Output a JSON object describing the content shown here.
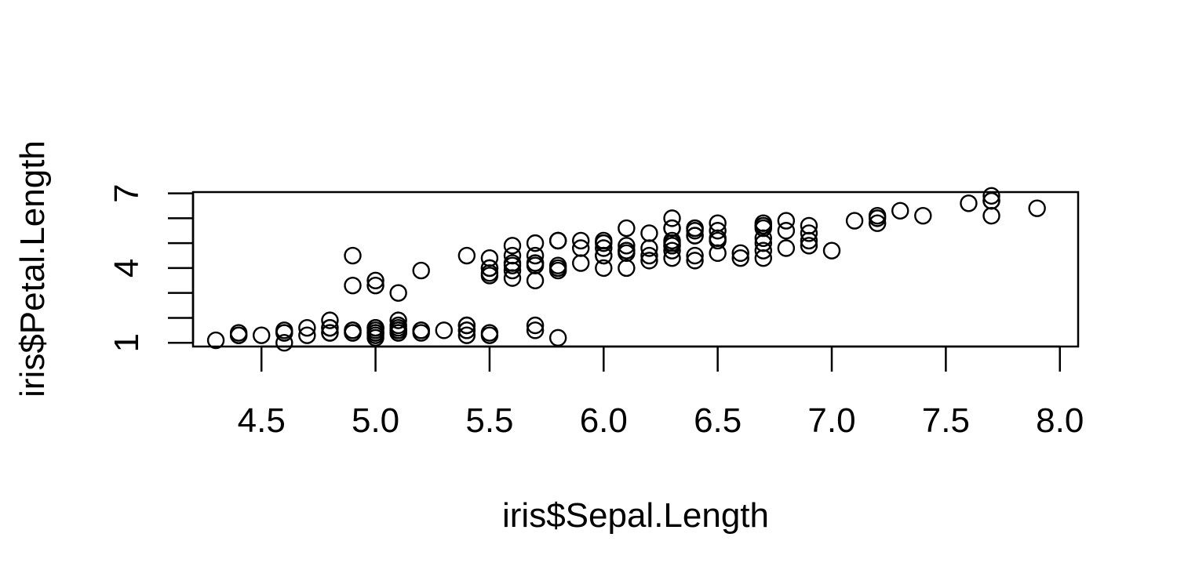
{
  "chart_data": {
    "type": "scatter",
    "title": "",
    "xlabel": "iris$Sepal.Length",
    "ylabel": "iris$Petal.Length",
    "xlim": [
      4.2,
      8.08
    ],
    "ylim": [
      0.85,
      7.05
    ],
    "x_ticks": [
      4.5,
      5.0,
      5.5,
      6.0,
      6.5,
      7.0,
      7.5,
      8.0
    ],
    "x_tick_labels": [
      "4.5",
      "5.0",
      "5.5",
      "6.0",
      "6.5",
      "7.0",
      "7.5",
      "8.0"
    ],
    "y_ticks": [
      1,
      2,
      3,
      4,
      5,
      6,
      7
    ],
    "y_tick_labels": [
      "1",
      "",
      "",
      "4",
      "",
      "",
      "7"
    ],
    "grid": false,
    "marker": "open-circle",
    "x": [
      5.1,
      4.9,
      4.7,
      4.6,
      5.0,
      5.4,
      4.6,
      5.0,
      4.4,
      4.9,
      5.4,
      4.8,
      4.8,
      4.3,
      5.8,
      5.7,
      5.4,
      5.1,
      5.7,
      5.1,
      5.4,
      5.1,
      4.6,
      5.1,
      4.8,
      5.0,
      5.0,
      5.2,
      5.2,
      4.7,
      4.8,
      5.4,
      5.2,
      5.5,
      4.9,
      5.0,
      5.5,
      4.9,
      4.4,
      5.1,
      5.0,
      4.5,
      4.4,
      5.0,
      5.1,
      4.8,
      5.1,
      4.6,
      5.3,
      5.0,
      7.0,
      6.4,
      6.9,
      5.5,
      6.5,
      5.7,
      6.3,
      4.9,
      6.6,
      5.2,
      5.0,
      5.9,
      6.0,
      6.1,
      5.6,
      6.7,
      5.6,
      5.8,
      6.2,
      5.6,
      5.9,
      6.1,
      6.3,
      6.1,
      6.4,
      6.6,
      6.8,
      6.7,
      6.0,
      5.7,
      5.5,
      5.5,
      5.8,
      6.0,
      5.4,
      6.0,
      6.7,
      6.3,
      5.6,
      5.5,
      5.5,
      6.1,
      5.8,
      5.0,
      5.6,
      5.7,
      5.7,
      6.2,
      5.1,
      5.7,
      6.3,
      5.8,
      7.1,
      6.3,
      6.5,
      7.6,
      4.9,
      7.3,
      6.7,
      7.2,
      6.5,
      6.4,
      6.8,
      5.7,
      5.8,
      6.4,
      6.5,
      7.7,
      7.7,
      6.0,
      6.9,
      5.6,
      7.7,
      6.3,
      6.7,
      7.2,
      6.2,
      6.1,
      6.4,
      7.2,
      7.4,
      7.9,
      6.4,
      6.3,
      6.1,
      7.7,
      6.3,
      6.4,
      6.0,
      6.9,
      6.7,
      6.9,
      5.8,
      6.8,
      6.7,
      6.7,
      6.3,
      6.5,
      6.2,
      5.9
    ],
    "y": [
      1.4,
      1.4,
      1.3,
      1.5,
      1.4,
      1.7,
      1.4,
      1.5,
      1.4,
      1.5,
      1.5,
      1.6,
      1.4,
      1.1,
      1.2,
      1.5,
      1.3,
      1.4,
      1.7,
      1.5,
      1.7,
      1.5,
      1.0,
      1.7,
      1.9,
      1.6,
      1.6,
      1.5,
      1.4,
      1.6,
      1.6,
      1.5,
      1.5,
      1.4,
      1.5,
      1.2,
      1.3,
      1.4,
      1.3,
      1.5,
      1.3,
      1.3,
      1.3,
      1.6,
      1.9,
      1.4,
      1.6,
      1.4,
      1.5,
      1.4,
      4.7,
      4.5,
      4.9,
      4.0,
      4.6,
      4.5,
      4.7,
      3.3,
      4.6,
      3.9,
      3.5,
      4.2,
      4.0,
      4.7,
      3.6,
      4.4,
      4.5,
      4.1,
      4.5,
      3.9,
      4.8,
      4.0,
      4.9,
      4.7,
      4.3,
      4.4,
      4.8,
      5.0,
      4.5,
      3.5,
      3.8,
      3.7,
      3.9,
      5.1,
      4.5,
      4.5,
      4.7,
      4.4,
      4.1,
      4.0,
      4.4,
      4.6,
      4.0,
      3.3,
      4.2,
      4.2,
      4.2,
      4.3,
      3.0,
      4.1,
      6.0,
      5.1,
      5.9,
      5.6,
      5.8,
      6.6,
      4.5,
      6.3,
      5.8,
      6.1,
      5.1,
      5.3,
      5.5,
      5.0,
      5.1,
      5.3,
      5.5,
      6.7,
      6.9,
      5.0,
      5.7,
      4.9,
      6.7,
      4.9,
      5.7,
      6.0,
      4.8,
      4.9,
      5.6,
      5.8,
      6.1,
      6.4,
      5.6,
      5.1,
      5.6,
      6.1,
      5.6,
      5.5,
      4.8,
      5.4,
      5.6,
      5.1,
      5.1,
      5.9,
      5.7,
      5.2,
      5.0,
      5.2,
      5.4,
      5.1
    ]
  }
}
